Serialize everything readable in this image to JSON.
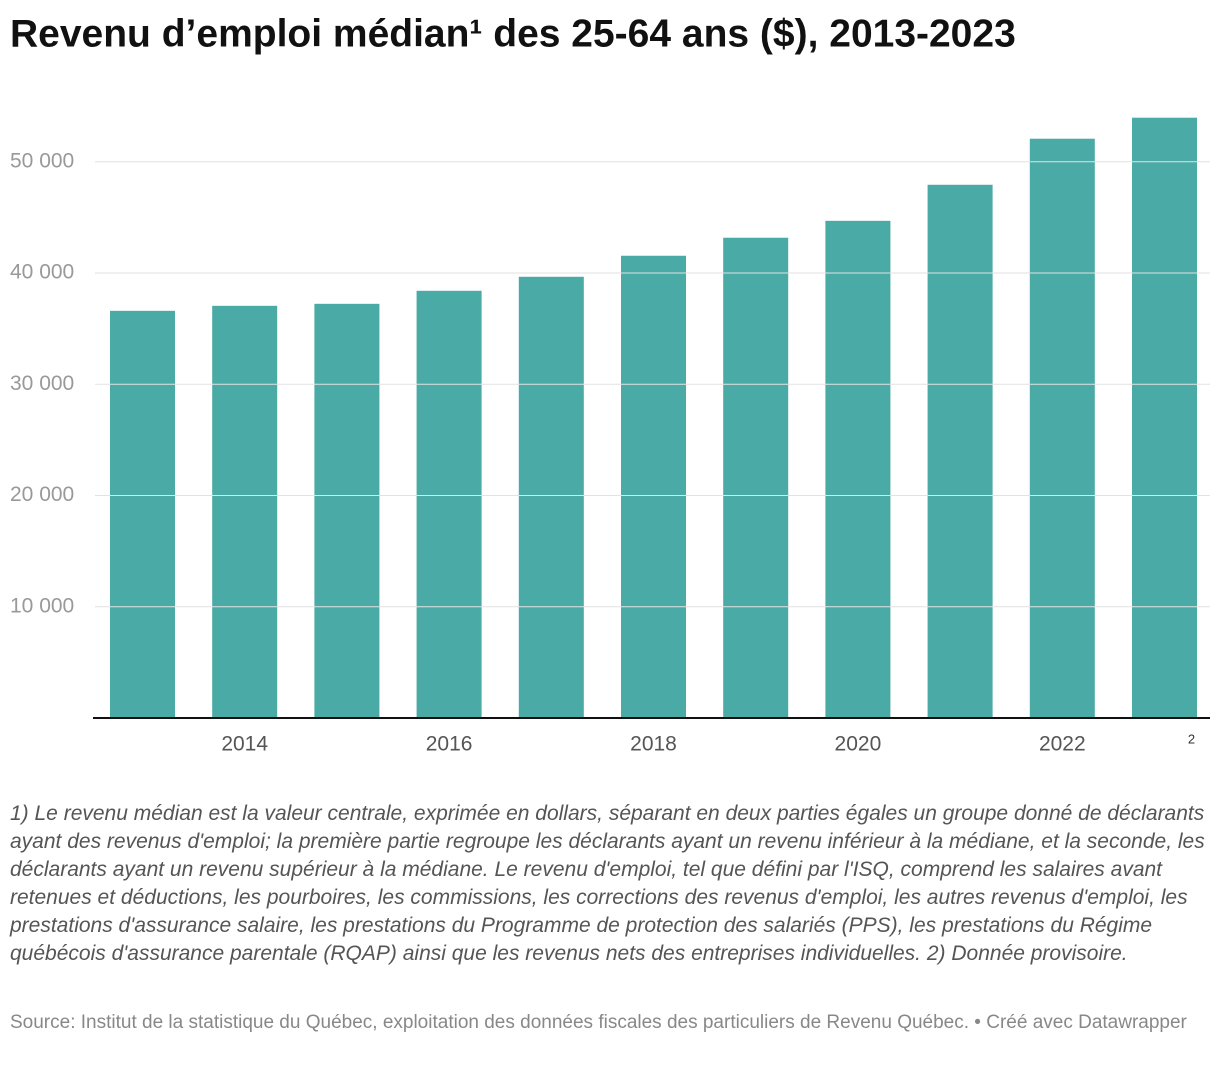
{
  "chart_data": {
    "type": "bar",
    "title": "Revenu d’emploi médian¹ des 25-64 ans ($), 2013-2023",
    "categories": [
      null,
      "2014",
      null,
      "2016",
      null,
      "2018",
      null,
      "2020",
      null,
      "2022",
      "2"
    ],
    "values": [
      36600,
      37050,
      37230,
      38400,
      39660,
      41550,
      43170,
      44690,
      47930,
      52070,
      53960
    ],
    "color": "#4aaaa5",
    "ylim": [
      0,
      56000
    ],
    "yticks": [
      {
        "value": 10000,
        "label": "10 000"
      },
      {
        "value": 20000,
        "label": "20 000"
      },
      {
        "value": 30000,
        "label": "30 000"
      },
      {
        "value": 40000,
        "label": "40 000"
      },
      {
        "value": 50000,
        "label": "50 000"
      }
    ],
    "grid": true,
    "notes": "1) Le revenu médian est la valeur centrale, exprimée en dollars, séparant en deux parties égales un groupe donné de déclarants ayant des revenus d'emploi; la première partie regroupe les déclarants ayant un revenu inférieur à la médiane, et la seconde, les déclarants ayant un revenu supérieur à la médiane. Le revenu d'emploi, tel que défini par l'ISQ, comprend les salaires avant retenues et déductions, les pourboires, les commissions, les corrections des revenus d'emploi, les autres revenus d'emploi, les prestations d'assurance salaire, les prestations du Programme de protection des salariés (PPS), les prestations du Régime québécois d'assurance parentale (RQAP) ainsi que les revenus nets des entreprises individuelles. 2) Donnée provisoire.",
    "source": "Source: Institut de la statistique du Québec, exploitation des données fiscales des particuliers de Revenu Québec. • Créé avec Datawrapper"
  }
}
